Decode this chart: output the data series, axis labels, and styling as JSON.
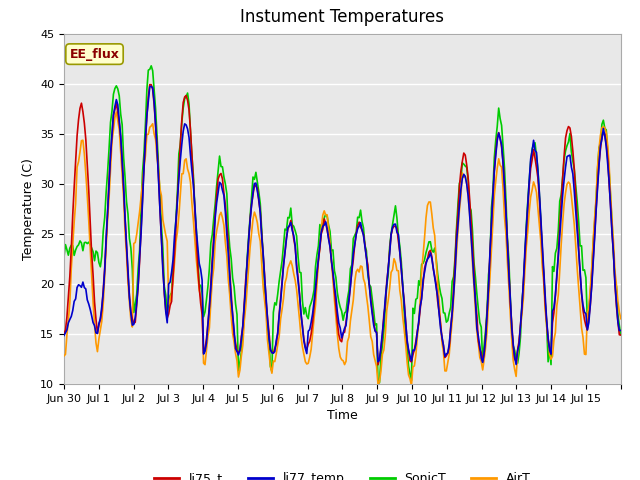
{
  "title": "Instument Temperatures",
  "xlabel": "Time",
  "ylabel": "Temperature (C)",
  "ylim": [
    10,
    45
  ],
  "xlim": [
    0,
    16
  ],
  "annotation": "EE_flux",
  "legend_labels": [
    "li75_t",
    "li77_temp",
    "SonicT",
    "AirT"
  ],
  "line_colors": [
    "#cc0000",
    "#0000cc",
    "#00cc00",
    "#ff9900"
  ],
  "fig_facecolor": "#ffffff",
  "axes_bg": "#e8e8e8",
  "grid_color": "#ffffff",
  "title_fontsize": 12,
  "tick_fontsize": 8,
  "label_fontsize": 9,
  "legend_fontsize": 9,
  "yticks": [
    10,
    15,
    20,
    25,
    30,
    35,
    40,
    45
  ],
  "tick_positions": [
    0,
    1,
    2,
    3,
    4,
    5,
    6,
    7,
    8,
    9,
    10,
    11,
    12,
    13,
    14,
    15,
    16
  ],
  "tick_labels": [
    "Jun 30",
    "Jul 1",
    "Jul 2",
    "Jul 3",
    "Jul 4",
    "Jul 5",
    "Jul 6",
    "Jul 7",
    "Jul 8",
    "Jul 9",
    "Jul 10",
    "Jul 11",
    "Jul 12",
    "Jul 13",
    "Jul 14",
    "Jul 15",
    ""
  ],
  "peaks_li75": [
    38,
    38,
    40,
    39,
    31,
    30,
    26,
    26,
    26,
    26,
    23,
    33,
    35,
    33,
    36,
    35
  ],
  "troughs_li75": [
    15,
    16,
    16,
    17,
    13,
    13,
    13,
    14,
    15,
    12,
    13,
    13,
    12,
    13,
    16,
    15
  ],
  "peaks_li77": [
    20,
    38,
    40,
    36,
    30,
    30,
    26,
    26,
    26,
    26,
    23,
    31,
    35,
    34,
    33,
    35
  ],
  "troughs_li77": [
    15,
    16,
    16,
    20,
    13,
    13,
    13,
    15,
    15,
    12,
    13,
    13,
    12,
    13,
    17,
    15
  ],
  "peaks_sonic": [
    24,
    40,
    42,
    39,
    32,
    31,
    27,
    27,
    27,
    27,
    24,
    32,
    37,
    34,
    34,
    36
  ],
  "troughs_sonic": [
    23,
    22,
    17,
    18,
    17,
    11,
    17,
    17,
    16,
    10,
    17,
    16,
    12,
    12,
    21,
    16
  ],
  "peaks_air": [
    34,
    37,
    36,
    32,
    27,
    27,
    22,
    27,
    22,
    22,
    28,
    31,
    32,
    30,
    30,
    36
  ],
  "troughs_air": [
    13,
    15,
    24,
    18,
    12,
    11,
    12,
    12,
    12,
    10,
    11,
    12,
    11,
    13,
    13,
    17
  ],
  "noise_seed": 42
}
